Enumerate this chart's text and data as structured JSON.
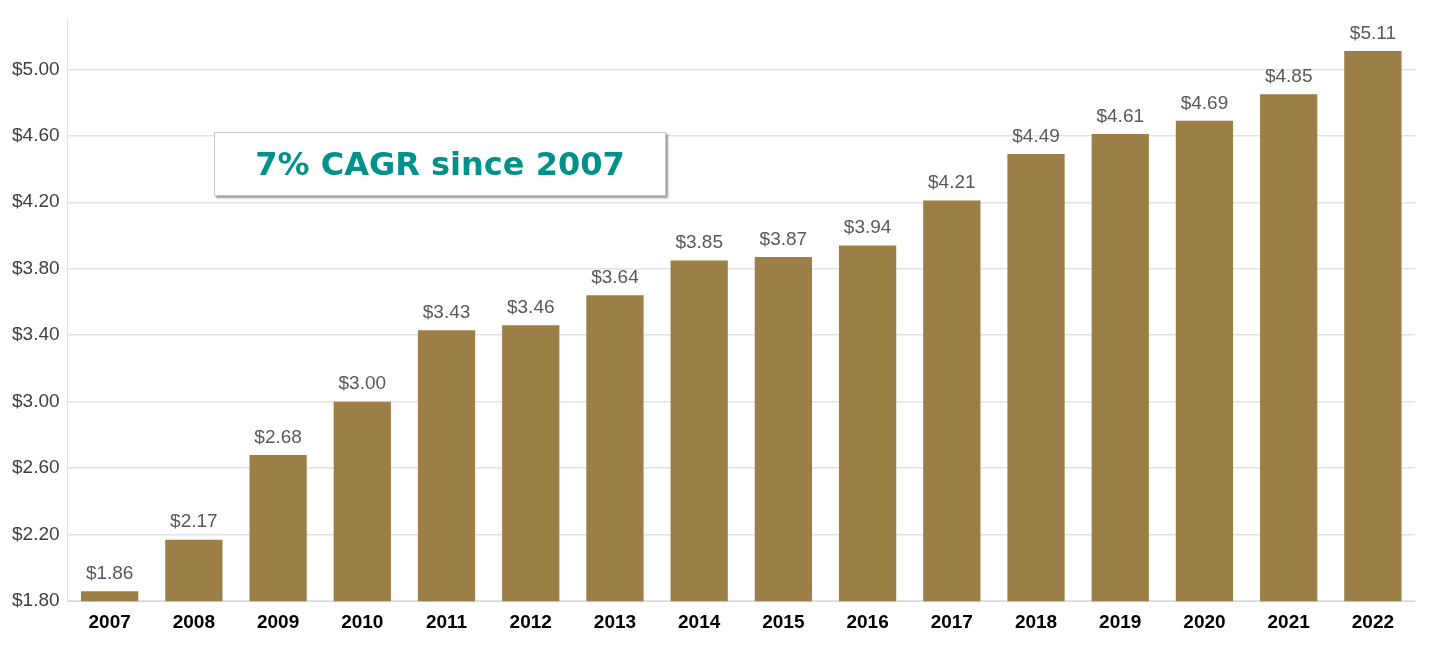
{
  "chart_data": {
    "type": "bar",
    "categories": [
      "2007",
      "2008",
      "2009",
      "2010",
      "2011",
      "2012",
      "2013",
      "2014",
      "2015",
      "2016",
      "2017",
      "2018",
      "2019",
      "2020",
      "2021",
      "2022"
    ],
    "values": [
      1.86,
      2.17,
      2.68,
      3.0,
      3.43,
      3.46,
      3.64,
      3.85,
      3.87,
      3.94,
      4.21,
      4.49,
      4.61,
      4.69,
      4.85,
      5.11
    ],
    "color": "#9c7f47",
    "value_labels": [
      "$1.86",
      "$2.17",
      "$2.68",
      "$3.00",
      "$3.43",
      "$3.46",
      "$3.64",
      "$3.85",
      "$3.87",
      "$3.94",
      "$4.21",
      "$4.49",
      "$4.61",
      "$4.69",
      "$4.85",
      "$5.11"
    ],
    "ylim": [
      1.8,
      5.3
    ],
    "yticks": [
      {
        "value": 1.8,
        "label": "$1.80"
      },
      {
        "value": 2.2,
        "label": "$2.20"
      },
      {
        "value": 2.6,
        "label": "$2.60"
      },
      {
        "value": 3.0,
        "label": "$3.00"
      },
      {
        "value": 3.4,
        "label": "$3.40"
      },
      {
        "value": 3.8,
        "label": "$3.80"
      },
      {
        "value": 4.2,
        "label": "$4.20"
      },
      {
        "value": 4.6,
        "label": "$4.60"
      },
      {
        "value": 5.0,
        "label": "$5.00"
      }
    ],
    "grid": "y",
    "annotations": [
      "7% CAGR since 2007"
    ]
  }
}
